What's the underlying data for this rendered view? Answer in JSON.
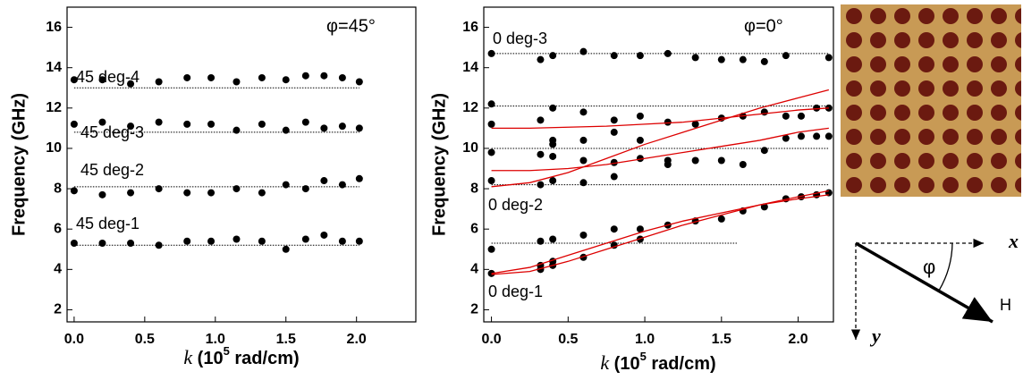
{
  "chart_data": [
    {
      "type": "scatter",
      "ylabel": "Frequency (GHz)",
      "xlabel": [
        "k",
        " (10",
        "5",
        " rad/cm)"
      ],
      "annotations": [
        "φ=45°",
        "45 deg-4",
        "45 deg-3",
        "45 deg-2",
        "45 deg-1"
      ],
      "xlim": [
        -0.05,
        2.42
      ],
      "ylim": [
        1.4,
        17
      ],
      "xticks": [
        {
          "value": 0,
          "label": "0.0"
        },
        0.5,
        {
          "value": 1,
          "label": "1.0"
        },
        1.5,
        {
          "value": 2,
          "label": "2.0"
        }
      ],
      "yticks": [
        2,
        4,
        6,
        8,
        10,
        12,
        14,
        16
      ],
      "reference_lines": [
        {
          "y": 13.0,
          "x": [
            0,
            2.02
          ]
        },
        {
          "y": 10.8,
          "x": [
            0,
            2.02
          ]
        },
        {
          "y": 8.1,
          "x": [
            0,
            2.02
          ]
        },
        {
          "y": 5.2,
          "x": [
            0,
            2.02
          ]
        }
      ],
      "color": "#000000",
      "x": [
        0,
        0.2,
        0.4,
        0.6,
        0.8,
        0.97,
        1.15,
        1.33,
        1.5,
        1.64,
        1.77,
        1.9,
        2.02
      ],
      "series": [
        {
          "values": [
            13.4,
            13.4,
            13.2,
            13.3,
            13.5,
            13.5,
            13.3,
            13.5,
            13.4,
            13.6,
            13.6,
            13.5,
            13.3
          ]
        },
        {
          "values": [
            11.2,
            11.3,
            11.1,
            11.3,
            11.2,
            11.2,
            10.9,
            11.2,
            10.9,
            11.3,
            11.0,
            11.1,
            11.0
          ]
        },
        {
          "values": [
            7.9,
            7.7,
            7.8,
            8.0,
            7.8,
            7.8,
            8.0,
            7.8,
            8.2,
            8.0,
            8.4,
            8.2,
            8.5
          ]
        },
        {
          "values": [
            5.3,
            5.3,
            5.3,
            5.2,
            5.4,
            5.4,
            5.5,
            5.4,
            5.0,
            5.5,
            5.7,
            5.4,
            5.4
          ]
        }
      ]
    },
    {
      "type": "scatter",
      "ylabel": "Frequency (GHz)",
      "xlabel": [
        "k",
        " (10",
        "5",
        " rad/cm)"
      ],
      "annotations": [
        "φ=0°",
        "0 deg-3",
        "0 deg-2",
        "0 deg-1"
      ],
      "xlim": [
        -0.05,
        2.23
      ],
      "ylim": [
        1.4,
        17
      ],
      "xticks": [
        {
          "value": 0,
          "label": "0.0"
        },
        0.5,
        {
          "value": 1,
          "label": "1.0"
        },
        1.5,
        {
          "value": 2,
          "label": "2.0"
        }
      ],
      "yticks": [
        2,
        4,
        6,
        8,
        10,
        12,
        14,
        16
      ],
      "reference_lines": [
        {
          "y": 14.7,
          "x": [
            0,
            2.2
          ]
        },
        {
          "y": 12.1,
          "x": [
            0,
            2.2
          ]
        },
        {
          "y": 10.0,
          "x": [
            0,
            2.2
          ]
        },
        {
          "y": 8.2,
          "x": [
            0,
            2.2
          ]
        },
        {
          "y": 5.3,
          "x": [
            0,
            1.6
          ]
        }
      ],
      "color": "#000000",
      "series": [
        {
          "x": [
            0,
            0,
            0,
            0,
            0,
            0,
            0,
            0.32,
            0.32,
            0.32,
            0.32,
            0.32,
            0.32,
            0.32,
            0.4,
            0.4,
            0.4,
            0.4,
            0.4,
            0.4,
            0.4,
            0.4,
            0.4,
            0.6,
            0.6,
            0.6,
            0.6,
            0.6,
            0.6,
            0.6,
            0.8,
            0.8,
            0.8,
            0.8,
            0.8,
            0.8,
            0.8,
            0.97,
            0.97,
            0.97,
            0.97,
            0.97,
            0.97,
            1.15,
            1.15,
            1.15,
            1.15,
            1.15,
            1.33,
            1.33,
            1.33,
            1.33,
            1.5,
            1.5,
            1.5,
            1.5,
            1.64,
            1.64,
            1.64,
            1.64,
            1.78,
            1.78,
            1.78,
            1.78,
            1.92,
            1.92,
            1.92,
            1.92,
            2.02,
            2.02,
            2.02,
            2.12,
            2.12,
            2.12,
            2.2,
            2.2,
            2.2,
            2.2
          ],
          "values": [
            14.7,
            12.2,
            11.2,
            9.8,
            8.4,
            5.0,
            3.8,
            14.4,
            11.4,
            9.7,
            8.2,
            5.4,
            4.2,
            4.0,
            14.6,
            12.0,
            10.4,
            10.2,
            9.6,
            8.4,
            5.5,
            4.4,
            4.2,
            14.8,
            11.8,
            10.4,
            9.4,
            8.3,
            5.7,
            4.6,
            14.6,
            11.4,
            10.8,
            9.3,
            8.6,
            6.0,
            5.2,
            14.6,
            11.6,
            10.4,
            9.5,
            6.0,
            5.5,
            14.7,
            11.3,
            9.4,
            9.2,
            6.2,
            14.5,
            11.2,
            9.4,
            6.4,
            14.4,
            11.5,
            9.4,
            6.5,
            14.4,
            11.6,
            9.2,
            6.9,
            14.3,
            11.8,
            9.9,
            7.1,
            14.6,
            11.6,
            10.5,
            7.5,
            11.6,
            10.6,
            7.6,
            12.0,
            10.6,
            7.7,
            14.5,
            12.0,
            10.6,
            7.8
          ]
        },
        {
          "type": "line",
          "color": "#dd0000",
          "x": [
            0,
            0.25,
            0.5,
            0.75,
            1.0,
            1.25,
            1.5,
            1.75,
            2.0,
            2.2
          ],
          "values": [
            3.75,
            3.9,
            4.4,
            5.0,
            5.6,
            6.2,
            6.7,
            7.2,
            7.6,
            7.9
          ]
        },
        {
          "type": "line",
          "color": "#dd0000",
          "x": [
            0,
            0.25,
            0.5,
            0.75,
            1.0,
            1.25,
            1.5,
            1.75,
            2.0,
            2.2
          ],
          "values": [
            3.8,
            4.1,
            4.7,
            5.3,
            5.9,
            6.4,
            6.8,
            7.2,
            7.5,
            7.7
          ]
        },
        {
          "type": "line",
          "color": "#dd0000",
          "x": [
            0,
            0.25,
            0.5,
            0.75,
            1.0,
            1.25,
            1.5,
            1.75,
            2.0,
            2.2
          ],
          "values": [
            8.1,
            8.3,
            8.8,
            9.5,
            10.2,
            10.8,
            11.4,
            12.0,
            12.5,
            12.9
          ]
        },
        {
          "type": "line",
          "color": "#dd0000",
          "x": [
            0,
            0.25,
            0.5,
            0.75,
            1.0,
            1.25,
            1.5,
            1.75,
            2.0,
            2.2
          ],
          "values": [
            8.9,
            8.9,
            9.0,
            9.2,
            9.5,
            9.8,
            10.1,
            10.4,
            10.8,
            11.0
          ]
        },
        {
          "type": "line",
          "color": "#dd0000",
          "x": [
            0,
            0.25,
            0.5,
            0.75,
            1.0,
            1.25,
            1.5,
            1.75,
            2.0,
            2.2
          ],
          "values": [
            11.0,
            11.0,
            11.05,
            11.1,
            11.2,
            11.3,
            11.5,
            11.7,
            11.9,
            12.0
          ]
        }
      ]
    }
  ],
  "diagram": {
    "x_label": "x",
    "y_label": "y",
    "angle_label": "φ",
    "field_label": "H"
  }
}
